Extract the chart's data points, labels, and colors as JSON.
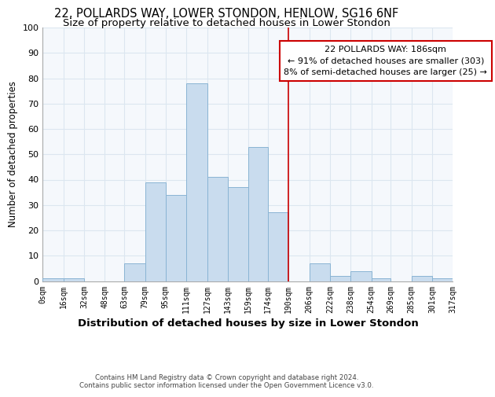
{
  "title1": "22, POLLARDS WAY, LOWER STONDON, HENLOW, SG16 6NF",
  "title2": "Size of property relative to detached houses in Lower Stondon",
  "xlabel": "Distribution of detached houses by size in Lower Stondon",
  "ylabel": "Number of detached properties",
  "bin_labels": [
    "0sqm",
    "16sqm",
    "32sqm",
    "48sqm",
    "63sqm",
    "79sqm",
    "95sqm",
    "111sqm",
    "127sqm",
    "143sqm",
    "159sqm",
    "174sqm",
    "190sqm",
    "206sqm",
    "222sqm",
    "238sqm",
    "254sqm",
    "269sqm",
    "285sqm",
    "301sqm",
    "317sqm"
  ],
  "bin_edges": [
    0,
    16,
    32,
    48,
    63,
    79,
    95,
    111,
    127,
    143,
    159,
    174,
    190,
    206,
    222,
    238,
    254,
    269,
    285,
    301,
    317
  ],
  "bar_heights": [
    1,
    1,
    0,
    0,
    7,
    39,
    34,
    78,
    41,
    37,
    53,
    27,
    0,
    7,
    2,
    4,
    1,
    0,
    2,
    1,
    0
  ],
  "bar_color": "#c9dcee",
  "bar_edge_color": "#8ab4d4",
  "ylim": [
    0,
    100
  ],
  "yticks": [
    0,
    10,
    20,
    30,
    40,
    50,
    60,
    70,
    80,
    90,
    100
  ],
  "vline_x": 190,
  "vline_color": "#cc0000",
  "annotation_title": "22 POLLARDS WAY: 186sqm",
  "annotation_line1": "← 91% of detached houses are smaller (303)",
  "annotation_line2": "8% of semi-detached houses are larger (25) →",
  "annotation_box_color": "#ffffff",
  "annotation_box_edge": "#cc0000",
  "footer1": "Contains HM Land Registry data © Crown copyright and database right 2024.",
  "footer2": "Contains public sector information licensed under the Open Government Licence v3.0.",
  "bg_color": "#ffffff",
  "plot_bg_color": "#f5f8fc",
  "grid_color": "#dce6f0",
  "title1_fontsize": 10.5,
  "title2_fontsize": 9.5,
  "xlabel_fontsize": 9.5,
  "ylabel_fontsize": 8.5,
  "annotation_fontsize": 8.0
}
